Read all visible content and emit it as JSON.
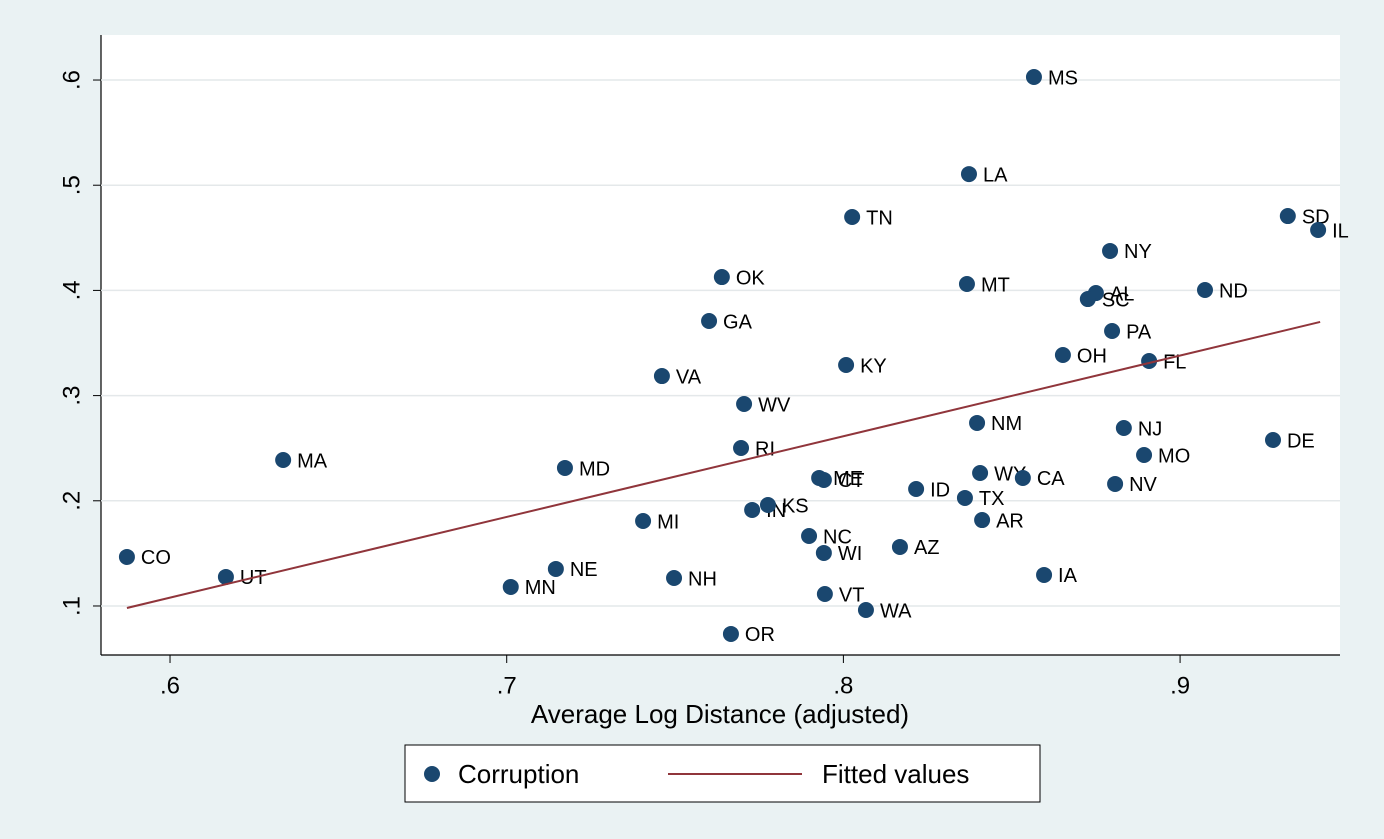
{
  "chart_data": {
    "type": "scatter",
    "xlabel": "Average Log Distance (adjusted)",
    "xlim": [
      0.5795,
      0.9475
    ],
    "ylim": [
      0.0534,
      0.6428
    ],
    "xticks": [
      {
        "value": 0.6,
        "label": ".6"
      },
      {
        "value": 0.7,
        "label": ".7"
      },
      {
        "value": 0.8,
        "label": ".8"
      },
      {
        "value": 0.9,
        "label": ".9"
      }
    ],
    "yticks": [
      {
        "value": 0.1,
        "label": ".1"
      },
      {
        "value": 0.2,
        "label": ".2"
      },
      {
        "value": 0.3,
        "label": ".3"
      },
      {
        "value": 0.4,
        "label": ".4"
      },
      {
        "value": 0.5,
        "label": ".5"
      },
      {
        "value": 0.6,
        "label": ".6"
      }
    ],
    "grid": true,
    "legend": "bottom",
    "series": [
      {
        "name": "Corruption",
        "type": "scatter",
        "color": "#1a476f",
        "labels": [
          "CO",
          "UT",
          "MA",
          "MN",
          "NE",
          "MD",
          "MI",
          "NH",
          "VA",
          "GA",
          "OK",
          "WV",
          "RI",
          "IN",
          "KS",
          "OR",
          "NC",
          "VT",
          "WI",
          "ME",
          "CT",
          "TN",
          "KY",
          "WA",
          "AZ",
          "ID",
          "TX",
          "AR",
          "WY",
          "CA",
          "NM",
          "MT",
          "LA",
          "MS",
          "IA",
          "OH",
          "AL",
          "SC",
          "NY",
          "PA",
          "NV",
          "NJ",
          "FL",
          "MO",
          "ND",
          "DE",
          "SD",
          "IL"
        ],
        "x": [
          0.5872,
          0.6166,
          0.6336,
          0.7012,
          0.7146,
          0.7173,
          0.7405,
          0.7497,
          0.7461,
          0.7601,
          0.7639,
          0.7705,
          0.7696,
          0.7729,
          0.7776,
          0.7666,
          0.7898,
          0.7945,
          0.7942,
          0.7928,
          0.7942,
          0.8026,
          0.8008,
          0.8067,
          0.8168,
          0.8216,
          0.8361,
          0.8412,
          0.8406,
          0.8533,
          0.8397,
          0.8367,
          0.8373,
          0.8566,
          0.8596,
          0.8652,
          0.875,
          0.8726,
          0.8792,
          0.8798,
          0.8807,
          0.8833,
          0.8908,
          0.8893,
          0.9074,
          0.9276,
          0.932,
          0.941
        ],
        "values": [
          0.1466,
          0.1276,
          0.2388,
          0.1181,
          0.1352,
          0.2312,
          0.1808,
          0.1266,
          0.3186,
          0.3709,
          0.4127,
          0.292,
          0.2502,
          0.1913,
          0.196,
          0.0734,
          0.1665,
          0.1114,
          0.1504,
          0.2217,
          0.2198,
          0.4698,
          0.3291,
          0.0962,
          0.1561,
          0.2112,
          0.2027,
          0.1817,
          0.2264,
          0.2217,
          0.274,
          0.4061,
          0.5106,
          0.6029,
          0.1295,
          0.3386,
          0.3975,
          0.3918,
          0.4375,
          0.3614,
          0.216,
          0.2692,
          0.3329,
          0.2435,
          0.4004,
          0.2578,
          0.4707,
          0.4574
        ]
      },
      {
        "name": "Fitted values",
        "type": "line",
        "color": "#90353b",
        "x": [
          0.5872,
          0.9416
        ],
        "values": [
          0.0981,
          0.37
        ]
      }
    ]
  }
}
